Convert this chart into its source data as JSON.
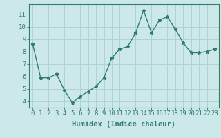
{
  "x": [
    0,
    1,
    2,
    3,
    4,
    5,
    6,
    7,
    8,
    9,
    10,
    11,
    12,
    13,
    14,
    15,
    16,
    17,
    18,
    19,
    20,
    21,
    22,
    23
  ],
  "y": [
    8.6,
    5.9,
    5.9,
    6.2,
    4.9,
    3.9,
    4.4,
    4.8,
    5.2,
    5.9,
    7.5,
    8.2,
    8.4,
    9.5,
    11.3,
    9.5,
    10.5,
    10.8,
    9.8,
    8.7,
    7.9,
    7.9,
    8.0,
    8.2
  ],
  "xlabel": "Humidex (Indice chaleur)",
  "ylim": [
    3.5,
    11.8
  ],
  "xlim": [
    -0.5,
    23.5
  ],
  "yticks": [
    4,
    5,
    6,
    7,
    8,
    9,
    10,
    11
  ],
  "xtick_labels": [
    "0",
    "1",
    "2",
    "3",
    "4",
    "5",
    "6",
    "7",
    "8",
    "9",
    "10",
    "11",
    "12",
    "13",
    "14",
    "15",
    "16",
    "17",
    "18",
    "19",
    "20",
    "21",
    "22",
    "23"
  ],
  "line_color": "#2e7d6e",
  "marker": "*",
  "bg_color": "#cce8e8",
  "grid_color": "#aacfcf",
  "axis_color": "#2e7d6e",
  "label_color": "#2e7d6e",
  "tick_color": "#2e7d6e",
  "xlabel_fontsize": 7.5,
  "tick_fontsize": 6.5,
  "linewidth": 1.0,
  "markersize": 3.5
}
